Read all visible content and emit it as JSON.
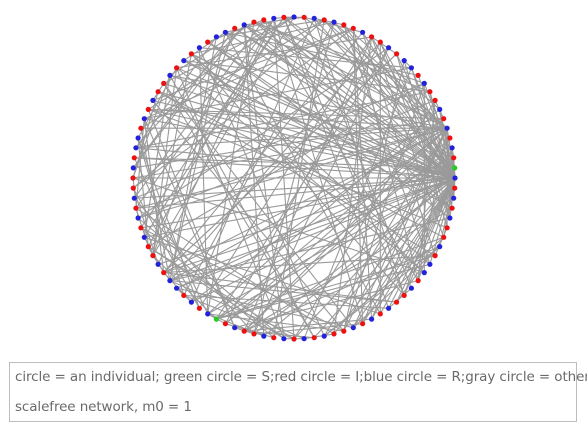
{
  "caption": {
    "legend_text": "circle = an individual; green circle = S;red circle = I;blue circle = R;gray circle = others",
    "network_text": "scalefree network, m0 = 1"
  },
  "colors": {
    "S": "#22cc22",
    "I": "#ee1111",
    "R": "#2222dd",
    "edge": "#9a9a9a"
  },
  "nodes": [
    "R",
    "I",
    "R",
    "I",
    "R",
    "I",
    "I",
    "R",
    "I",
    "I",
    "R",
    "I",
    "R",
    "R",
    "I",
    "R",
    "I",
    "I",
    "R",
    "I",
    "R",
    "I",
    "R",
    "I",
    "S",
    "R",
    "I",
    "R",
    "I",
    "R",
    "I",
    "I",
    "R",
    "I",
    "R",
    "R",
    "I",
    "R",
    "I",
    "I",
    "R",
    "I",
    "R",
    "I",
    "R",
    "I",
    "I",
    "R",
    "I",
    "R",
    "I",
    "R",
    "I",
    "R",
    "I",
    "I",
    "R",
    "I",
    "S",
    "R",
    "I",
    "R",
    "I",
    "R",
    "R",
    "I",
    "R",
    "I",
    "I",
    "R",
    "I",
    "R",
    "I",
    "R",
    "I",
    "I",
    "R",
    "I",
    "R",
    "R",
    "I",
    "R",
    "I",
    "R",
    "I",
    "I",
    "R",
    "I",
    "R",
    "I",
    "R",
    "I",
    "R",
    "R",
    "I",
    "R",
    "I",
    "I",
    "R",
    "I"
  ]
}
